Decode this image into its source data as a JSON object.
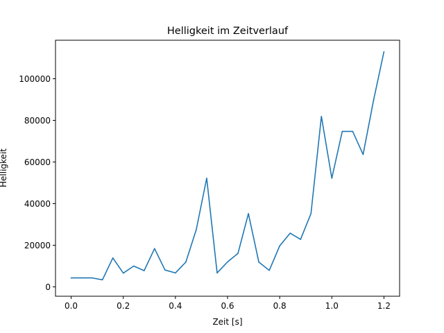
{
  "chart_data": {
    "type": "line",
    "title": "Helligkeit im Zeitverlauf",
    "xlabel": "Zeit [s]",
    "ylabel": "Helligkeit",
    "xlim": [
      -0.06,
      1.26
    ],
    "ylim": [
      -4500,
      118500
    ],
    "x_ticks": [
      0.0,
      0.2,
      0.4,
      0.6,
      0.8,
      1.0,
      1.2
    ],
    "x_tick_labels": [
      "0.0",
      "0.2",
      "0.4",
      "0.6",
      "0.8",
      "1.0",
      "1.2"
    ],
    "y_ticks": [
      0,
      20000,
      40000,
      60000,
      80000,
      100000
    ],
    "y_tick_labels": [
      "0",
      "20000",
      "40000",
      "60000",
      "80000",
      "100000"
    ],
    "grid": false,
    "legend": false,
    "series": [
      {
        "color": "#1f77b4",
        "x": [
          0.0,
          0.04,
          0.08,
          0.12,
          0.16,
          0.2,
          0.24,
          0.28,
          0.32,
          0.36,
          0.4,
          0.44,
          0.48,
          0.52,
          0.56,
          0.6,
          0.64,
          0.68,
          0.72,
          0.76,
          0.8,
          0.84,
          0.88,
          0.92,
          0.96,
          1.0,
          1.04,
          1.08,
          1.12,
          1.16,
          1.2
        ],
        "y": [
          4300,
          4300,
          4300,
          3400,
          13900,
          6600,
          10000,
          7800,
          18400,
          8100,
          6700,
          11900,
          27500,
          52200,
          6700,
          12000,
          16100,
          35200,
          11900,
          7900,
          19700,
          25800,
          22800,
          35200,
          81900,
          52200,
          74700,
          74700,
          63600,
          89600,
          113000
        ]
      }
    ]
  }
}
